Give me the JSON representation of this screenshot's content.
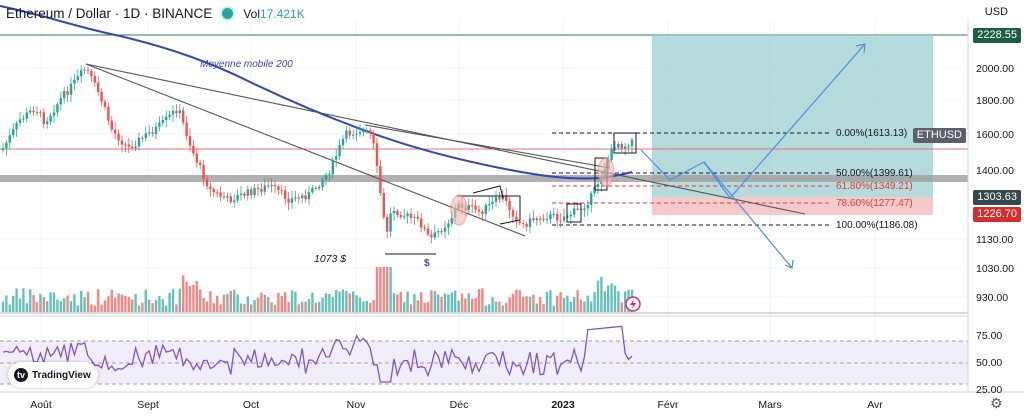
{
  "header": {
    "title": "Ethereum / Dollar · 1D · BINANCE",
    "volume_label": "Vol",
    "volume_value": "17.421K",
    "status_color": "#26a69a"
  },
  "currency": "USD",
  "price_axis": {
    "ticks": [
      "2000.00",
      "1800.00",
      "1600.00",
      "1400.00",
      "1130.00",
      "1030.00",
      "930.00"
    ],
    "badge_target": "2228.55",
    "badge_current": "1303.63",
    "badge_stop": "1226.70",
    "badge_symbol": "ETHUSD"
  },
  "rsi_axis": {
    "ticks": [
      "75.00",
      "50.00",
      "25.00"
    ]
  },
  "time_axis": [
    "Août",
    "Sept",
    "Oct",
    "Nov",
    "Déc",
    "2023",
    "Févr",
    "Mars",
    "Avr"
  ],
  "fib_levels": [
    {
      "label": "0.00%(1613.13)",
      "color": "#131722"
    },
    {
      "label": "50.00%(1399.61)",
      "color": "#131722"
    },
    {
      "label": "61.80%(1349.21)",
      "color": "#e53935"
    },
    {
      "label": "78.60%(1277.47)",
      "color": "#e53935"
    },
    {
      "label": "100.00%(1186.08)",
      "color": "#131722"
    }
  ],
  "annotations": {
    "ma_label": "Moyenne mobile 200",
    "low_label": "1073 $",
    "dollar_mark": "$"
  },
  "logo_text": "TradingView",
  "colors": {
    "up": "#26a69a",
    "down": "#ef5350",
    "ma": "#3949ab",
    "target_zone": "#9ecfd1",
    "stop_zone": "#f3c1c1",
    "projection": "#4a8fe0"
  }
}
